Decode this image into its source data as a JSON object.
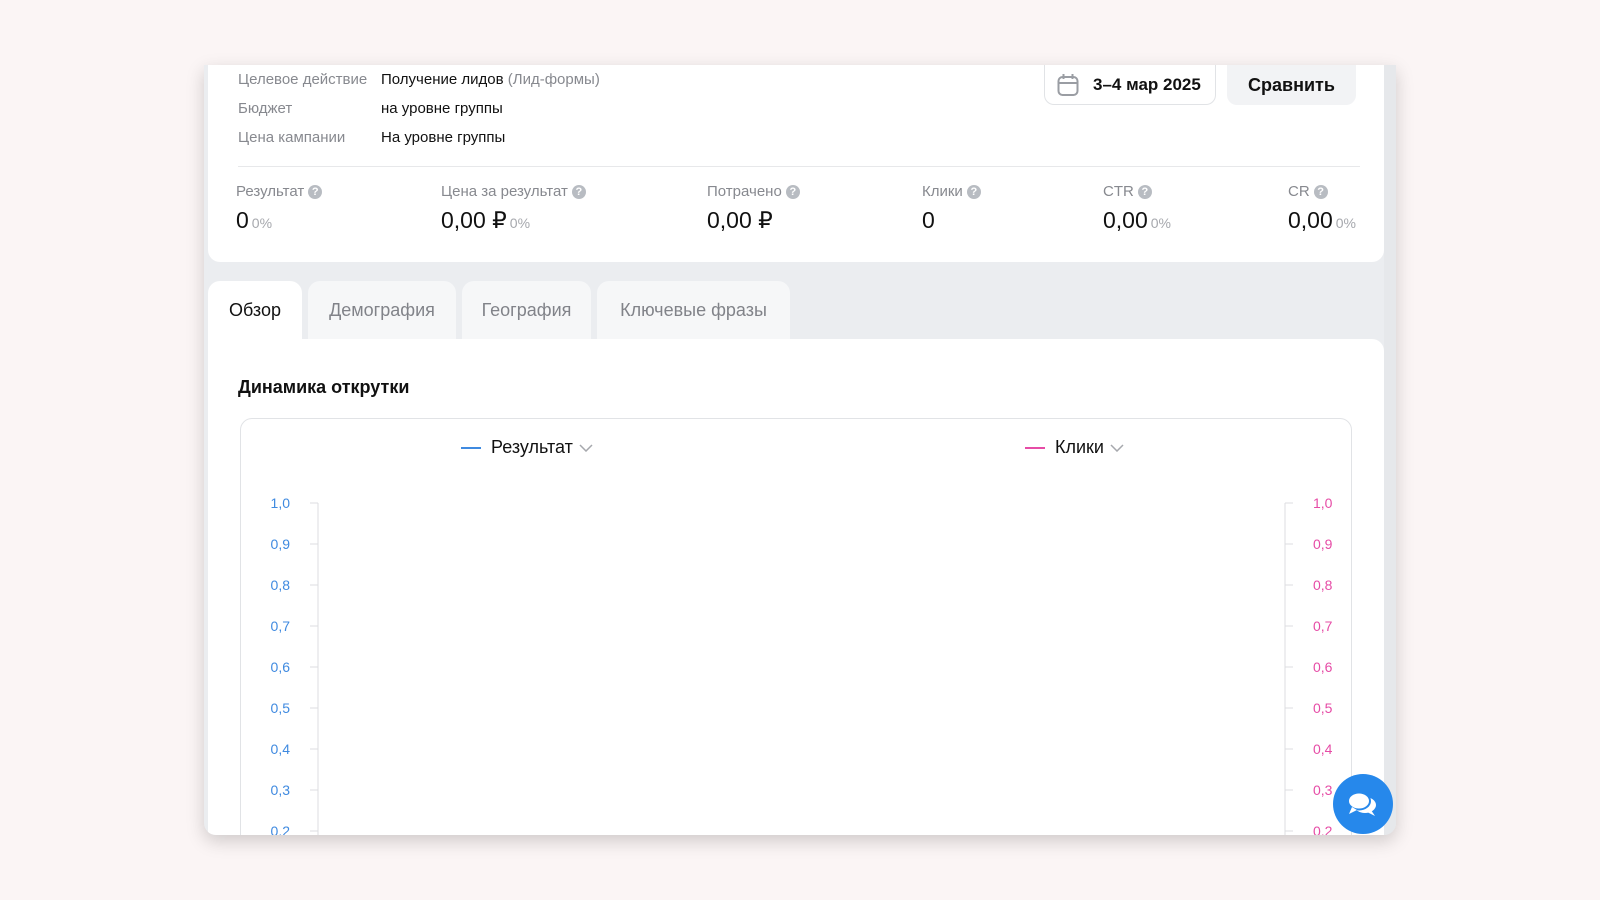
{
  "info": [
    {
      "key": "Целевое действие",
      "value": "Получение лидов",
      "extra": "(Лид-формы)"
    },
    {
      "key": "Бюджет",
      "value": "на уровне группы"
    },
    {
      "key": "Цена кампании",
      "value": "На уровне группы"
    }
  ],
  "date_range": "3–4 мар 2025",
  "compare_label": "Сравнить",
  "metrics": [
    {
      "label": "Результат",
      "value": "0",
      "pct": "0%"
    },
    {
      "label": "Цена за результат",
      "value": "0,00 ₽",
      "pct": "0%"
    },
    {
      "label": "Потрачено",
      "value": "0,00 ₽"
    },
    {
      "label": "Клики",
      "value": "0"
    },
    {
      "label": "CTR",
      "value": "0,00",
      "pct": "0%"
    },
    {
      "label": "CR",
      "value": "0,00",
      "pct": "0%"
    }
  ],
  "tabs": [
    {
      "label": "Обзор",
      "active": true
    },
    {
      "label": "Демография"
    },
    {
      "label": "География"
    },
    {
      "label": "Ключевые фразы"
    }
  ],
  "section_title": "Динамика открутки",
  "chart_data": {
    "type": "line",
    "series": [
      {
        "name": "Результат",
        "color": "#3f8ae0",
        "axis": "left",
        "values": []
      },
      {
        "name": "Клики",
        "color": "#e64ca6",
        "axis": "right",
        "values": []
      }
    ],
    "y_left": {
      "ticks": [
        "1,0",
        "0,9",
        "0,8",
        "0,7",
        "0,6",
        "0,5",
        "0,4",
        "0,3",
        "0,2"
      ],
      "ylim_visible": [
        0.2,
        1.0
      ]
    },
    "y_right": {
      "ticks": [
        "1,0",
        "0,9",
        "0,8",
        "0,7",
        "0,6",
        "0,5",
        "0,4",
        "0,3",
        "0,2"
      ],
      "ylim_visible": [
        0.2,
        1.0
      ]
    },
    "grid": false
  },
  "icons": {
    "date": "calendar-icon",
    "help": "question-circle-icon",
    "chat": "chat-bubbles-icon"
  }
}
